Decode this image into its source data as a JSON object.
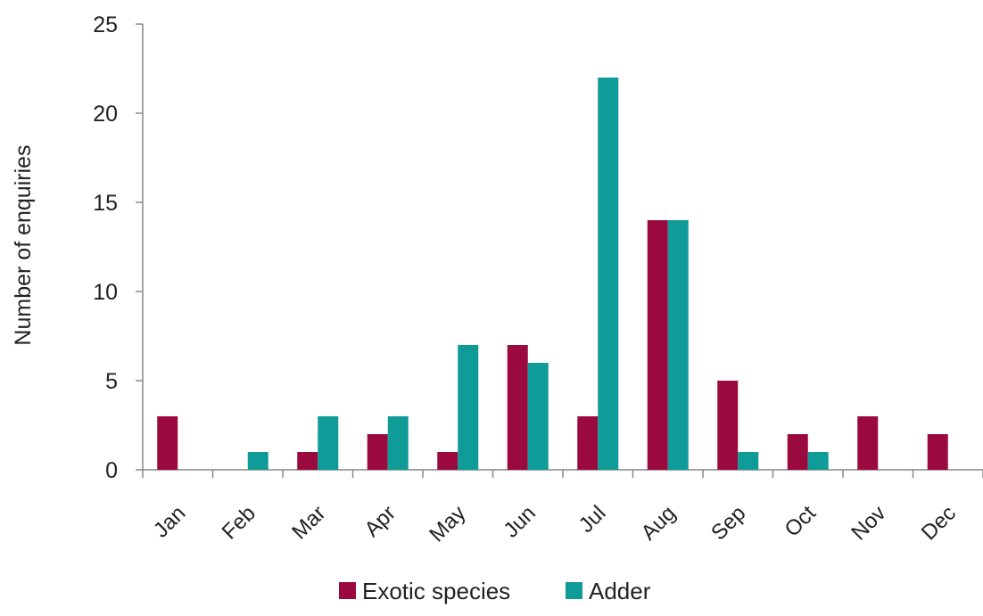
{
  "chart_data": {
    "type": "bar",
    "title": "",
    "xlabel": "",
    "ylabel": "Number of enquiries",
    "ylim": [
      0,
      25
    ],
    "yticks": [
      0,
      5,
      10,
      15,
      20,
      25
    ],
    "grid": false,
    "legend": "bottom",
    "categories": [
      "Jan",
      "Feb",
      "Mar",
      "Apr",
      "May",
      "Jun",
      "Jul",
      "Aug",
      "Sep",
      "Oct",
      "Nov",
      "Dec"
    ],
    "series": [
      {
        "name": "Exotic species",
        "color": "#9b0a3f",
        "values": [
          3,
          0,
          1,
          2,
          1,
          7,
          3,
          14,
          5,
          2,
          3,
          2
        ]
      },
      {
        "name": "Adder",
        "color": "#0f9b97",
        "values": [
          0,
          1,
          3,
          3,
          7,
          6,
          22,
          14,
          1,
          1,
          0,
          0
        ]
      }
    ]
  }
}
